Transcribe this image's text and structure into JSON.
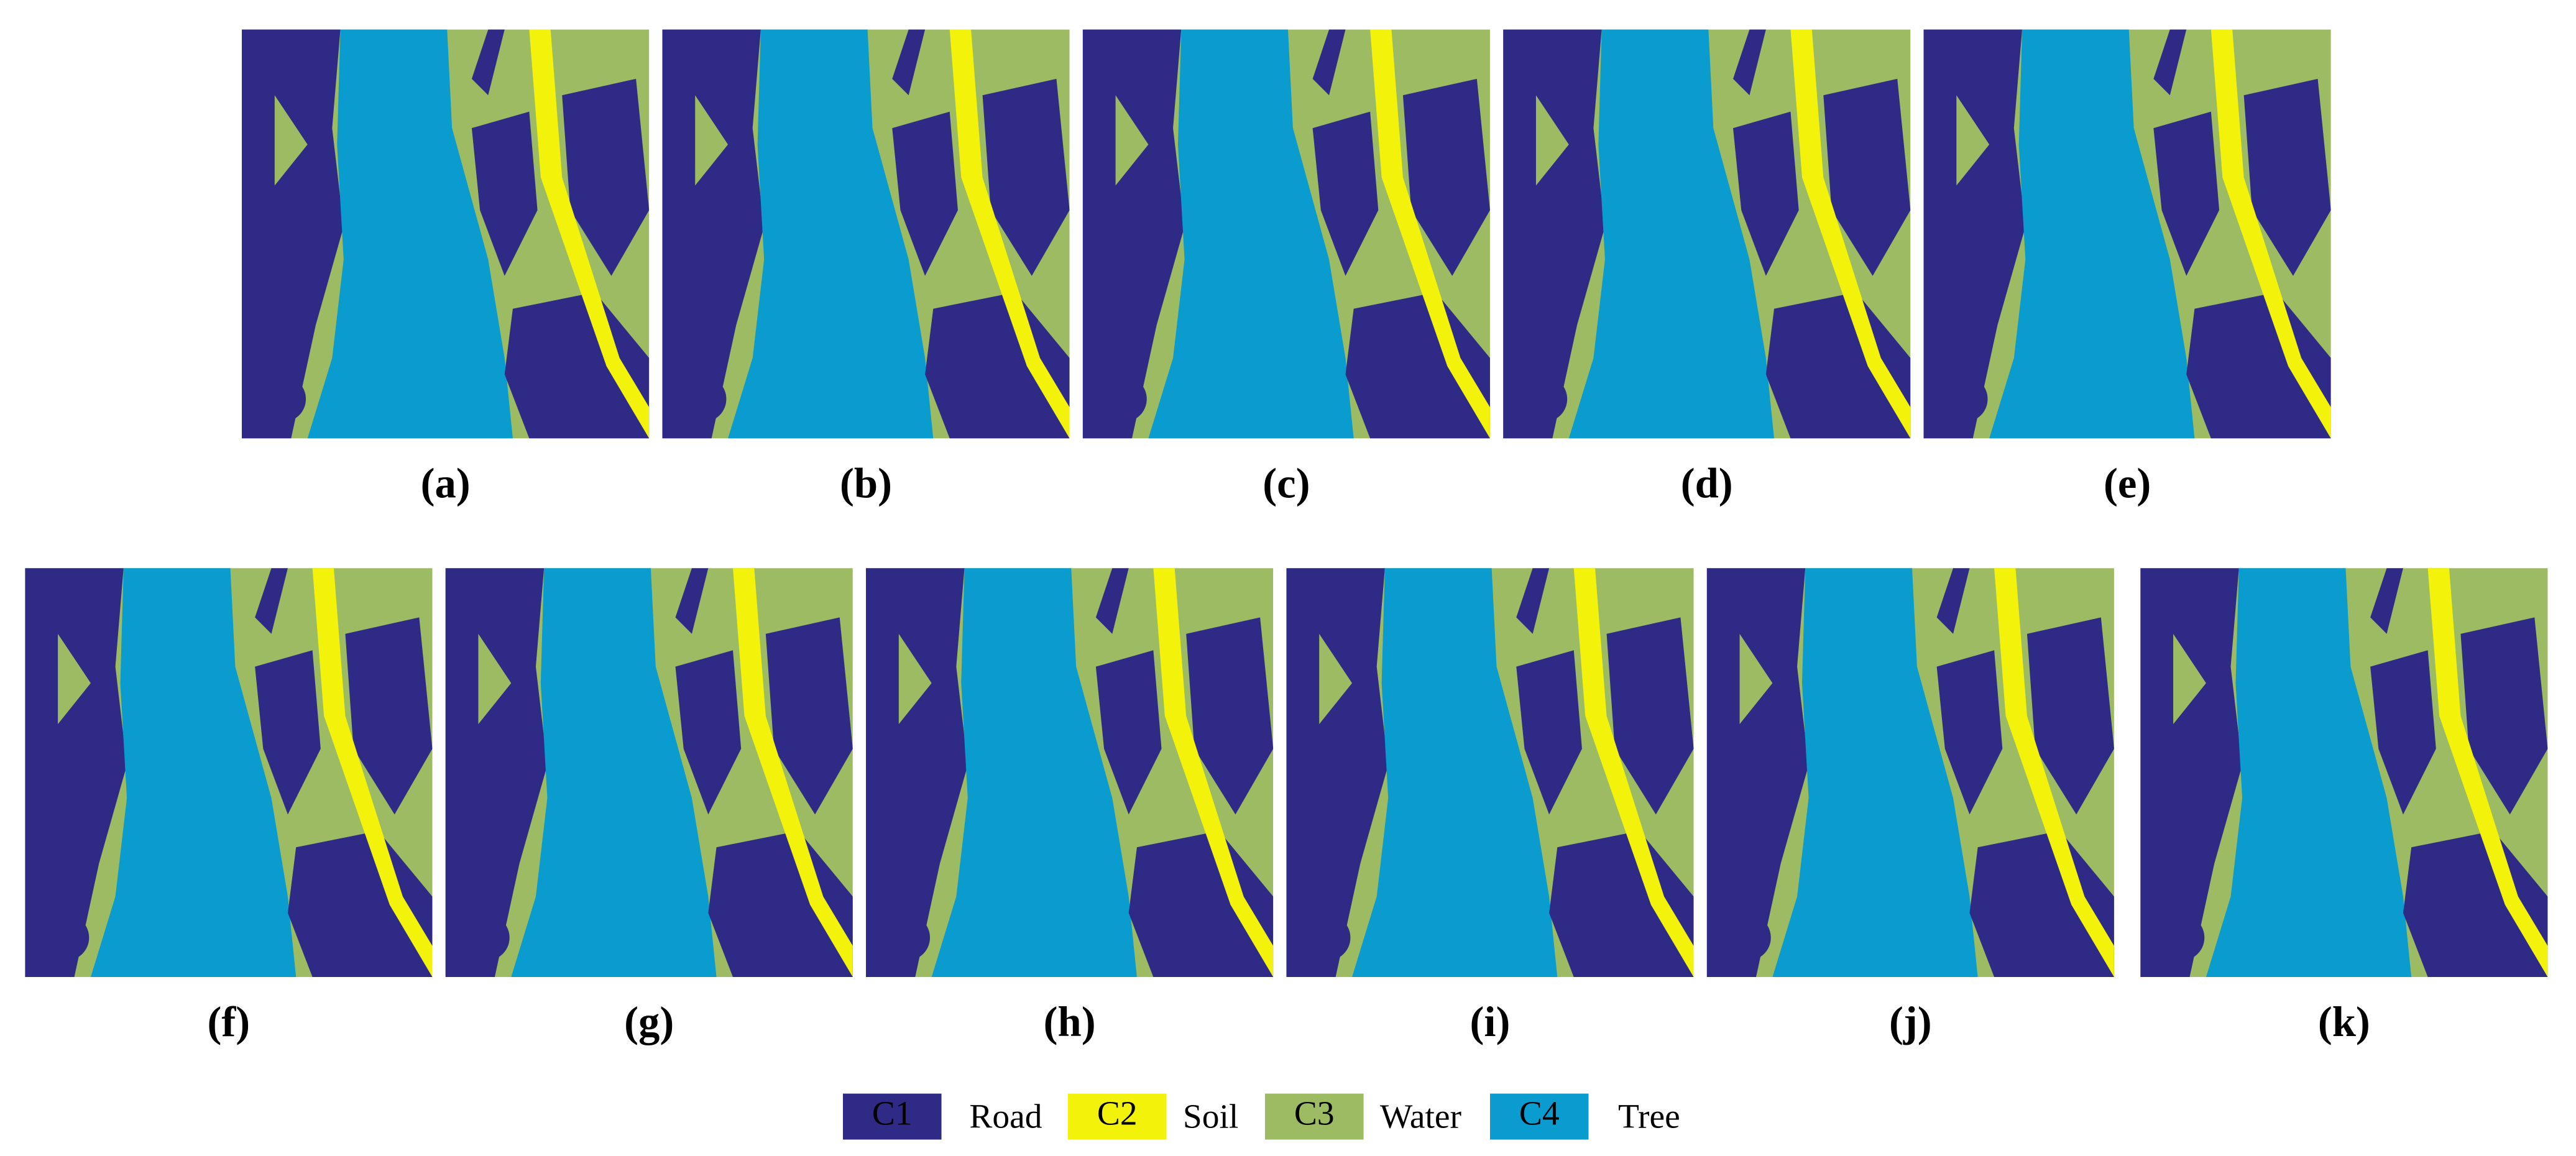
{
  "panels": [
    "(a)",
    "(b)",
    "(c)",
    "(d)",
    "(e)",
    "(f)",
    "(g)",
    "(h)",
    "(i)",
    "(j)",
    "(k)"
  ],
  "legend": [
    {
      "code": "C1",
      "name": "Road",
      "color": "#2e2a86"
    },
    {
      "code": "C2",
      "name": "Soil",
      "color": "#f2f20a"
    },
    {
      "code": "C3",
      "name": "Water",
      "color": "#9dbb63"
    },
    {
      "code": "C4",
      "name": "Tree",
      "color": "#0b9ccf"
    }
  ]
}
